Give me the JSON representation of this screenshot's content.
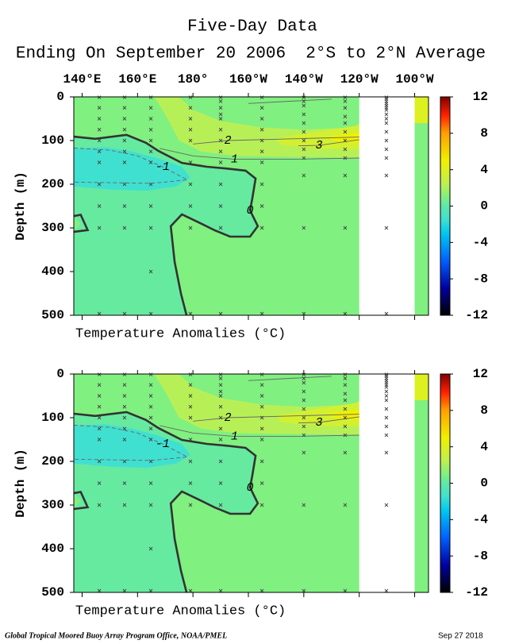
{
  "title": "Five-Day Data",
  "subtitle": "Ending On September 20 2006  2°S to 2°N Average",
  "footer": {
    "credit": "Global Tropical Moored Buoy Array Program Office, NOAA/PMEL",
    "date": "Sep 27 2018"
  },
  "chart_data": [
    {
      "type": "contour",
      "xlabel": "Temperature Anomalies (°C)",
      "ylabel": "Depth (m)",
      "xlim": [
        137,
        265
      ],
      "ylim": [
        0,
        500
      ],
      "y_inverted": true,
      "xticks": [
        {
          "value": 140,
          "label": "140°E"
        },
        {
          "value": 160,
          "label": "160°E"
        },
        {
          "value": 180,
          "label": "180°"
        },
        {
          "value": 200,
          "label": "160°W"
        },
        {
          "value": 220,
          "label": "140°W"
        },
        {
          "value": 240,
          "label": "120°W"
        },
        {
          "value": 260,
          "label": "100°W"
        }
      ],
      "yticks": [
        0,
        100,
        200,
        300,
        400,
        500
      ],
      "zlim": [
        -12,
        12
      ],
      "zticks": [
        12,
        8,
        4,
        0,
        -4,
        -8,
        -12
      ],
      "colorscale": [
        [
          -12,
          "#000000"
        ],
        [
          -9,
          "#0000a0"
        ],
        [
          -6,
          "#0060ff"
        ],
        [
          -3,
          "#00c8f0"
        ],
        [
          -1.5,
          "#40e0d0"
        ],
        [
          0,
          "#60e8a8"
        ],
        [
          1,
          "#80f080"
        ],
        [
          2.5,
          "#c0f050"
        ],
        [
          5,
          "#f0f000"
        ],
        [
          8,
          "#ffa000"
        ],
        [
          10,
          "#ff2000"
        ],
        [
          12,
          "#800000"
        ]
      ],
      "no_data_x": [
        240,
        260
      ],
      "regions": [
        {
          "value": 1,
          "x": [
            137,
            265,
            265,
            137
          ],
          "y": [
            0,
            0,
            500,
            500
          ]
        },
        {
          "value": 0.2,
          "x": [
            137,
            144.7,
            156,
            163,
            167.6,
            176,
            185,
            192,
            199,
            202.6,
            201.4,
            200.6,
            203.4,
            200.6,
            193.4,
            187.7,
            182,
            176,
            172,
            173.4,
            175.7,
            177.7,
            137,
            137,
            139.5,
            137
          ],
          "y": [
            91,
            96,
            87,
            105,
            124,
            151,
            160,
            164,
            169,
            187,
            233,
            260,
            296,
            320,
            320,
            305,
            287,
            269,
            296,
            378,
            451,
            500,
            500,
            309,
            290,
            273
          ]
        },
        {
          "value": -1.5,
          "x": [
            137,
            148,
            158,
            167,
            176,
            179,
            174,
            163,
            150,
            137
          ],
          "y": [
            118,
            115,
            125,
            140,
            160,
            185,
            205,
            215,
            212,
            205
          ]
        },
        {
          "value": 2.3,
          "x": [
            166,
            175,
            180,
            190,
            205,
            220,
            238,
            240,
            240,
            225,
            210,
            195,
            183,
            175,
            170
          ],
          "y": [
            0,
            0,
            30,
            55,
            70,
            75,
            70,
            60,
            140,
            138,
            137,
            135,
            125,
            100,
            40
          ]
        },
        {
          "value": 3.5,
          "x": [
            210,
            225,
            240,
            240,
            225,
            212
          ],
          "y": [
            95,
            80,
            65,
            120,
            118,
            110
          ]
        },
        {
          "value": 5,
          "x": [
            228,
            236,
            240,
            240,
            232
          ],
          "y": [
            92,
            85,
            82,
            105,
            102
          ]
        },
        {
          "value": 4,
          "x": [
            260,
            265,
            265,
            260
          ],
          "y": [
            0,
            0,
            60,
            60
          ]
        }
      ],
      "contours": [
        {
          "level": 0,
          "labeled": true,
          "x": [
            137,
            144.7,
            156,
            163,
            167.6,
            176,
            185,
            192,
            199,
            202.6,
            201.4,
            200.6,
            203.4,
            200.6,
            193.4,
            187.7,
            182,
            176,
            172,
            173.4,
            175.7,
            177.7
          ],
          "y": [
            91,
            96,
            87,
            105,
            124,
            151,
            160,
            164,
            169,
            187,
            233,
            260,
            296,
            320,
            320,
            305,
            287,
            269,
            296,
            378,
            451,
            500
          ]
        },
        {
          "level": 0,
          "labeled": false,
          "x": [
            137,
            139.5,
            142,
            137
          ],
          "y": [
            273,
            270,
            305,
            309
          ]
        },
        {
          "level": 1,
          "labeled": true,
          "x": [
            168,
            180,
            195,
            215,
            240
          ],
          "y": [
            118,
            135,
            143,
            143,
            140
          ]
        },
        {
          "level": 2,
          "labeled": true,
          "x": [
            180,
            192.6,
            240
          ],
          "y": [
            108,
            100,
            92
          ]
        },
        {
          "level": 2,
          "labeled": false,
          "x": [
            200,
            215,
            230
          ],
          "y": [
            15,
            10,
            5
          ]
        },
        {
          "level": 3,
          "labeled": true,
          "x": [
            218,
            225.5,
            240
          ],
          "y": [
            112,
            111,
            98
          ]
        },
        {
          "level": -1,
          "labeled": true,
          "x": [
            137,
            150,
            160,
            169,
            178,
            165,
            137
          ],
          "y": [
            117,
            122,
            135,
            160,
            190,
            198,
            195
          ]
        }
      ],
      "sensors": [
        {
          "lon": 146.2,
          "depths": [
            1,
            25,
            50,
            75,
            100,
            125,
            150,
            200,
            250,
            300,
            500
          ]
        },
        {
          "lon": 155.3,
          "depths": [
            1,
            25,
            50,
            75,
            100,
            125,
            150,
            200,
            250,
            300,
            500
          ]
        },
        {
          "lon": 164.8,
          "depths": [
            1,
            25,
            50,
            75,
            100,
            125,
            150,
            200,
            250,
            300,
            400,
            500
          ]
        },
        {
          "lon": 179.1,
          "depths": [
            1,
            25,
            50,
            75,
            100,
            150,
            200,
            250,
            300,
            500
          ]
        },
        {
          "lon": 190,
          "depths": [
            1,
            10,
            25,
            40,
            50,
            75,
            100,
            125,
            150,
            200,
            250,
            300,
            500
          ]
        },
        {
          "lon": 204.9,
          "depths": [
            1,
            25,
            50,
            75,
            100,
            125,
            150,
            200,
            250,
            300,
            500
          ]
        },
        {
          "lon": 220,
          "depths": [
            1,
            10,
            20,
            40,
            60,
            80,
            100,
            120,
            140,
            180,
            300,
            500
          ]
        },
        {
          "lon": 234.9,
          "depths": [
            1,
            10,
            25,
            45,
            60,
            80,
            100,
            120,
            140,
            180,
            300,
            500
          ]
        },
        {
          "lon": 249.8,
          "depths": [
            1,
            5,
            10,
            15,
            20,
            25,
            30,
            40,
            50,
            60,
            80,
            100,
            120,
            140,
            180,
            300,
            500
          ]
        }
      ]
    },
    {
      "type": "contour",
      "xlabel": "Temperature Anomalies (°C)",
      "ylabel": "Depth (m)",
      "xlim": [
        137,
        265
      ],
      "ylim": [
        0,
        500
      ],
      "y_inverted": true,
      "xticks": [
        140,
        160,
        180,
        200,
        220,
        240,
        260
      ],
      "yticks": [
        0,
        100,
        200,
        300,
        400,
        500
      ],
      "zlim": [
        -12,
        12
      ],
      "zticks": [
        12,
        8,
        4,
        0,
        -4,
        -8,
        -12
      ],
      "colorscale": [
        [
          -12,
          "#000000"
        ],
        [
          -9,
          "#0000a0"
        ],
        [
          -6,
          "#0060ff"
        ],
        [
          -3,
          "#00c8f0"
        ],
        [
          -1.5,
          "#40e0d0"
        ],
        [
          0,
          "#60e8a8"
        ],
        [
          1,
          "#80f080"
        ],
        [
          2.5,
          "#c0f050"
        ],
        [
          5,
          "#f0f000"
        ],
        [
          8,
          "#ffa000"
        ],
        [
          10,
          "#ff2000"
        ],
        [
          12,
          "#800000"
        ]
      ],
      "no_data_x": [
        240,
        260
      ],
      "regions": [
        {
          "value": 1,
          "x": [
            137,
            265,
            265,
            137
          ],
          "y": [
            0,
            0,
            500,
            500
          ]
        },
        {
          "value": 0.2,
          "x": [
            137,
            144.7,
            156,
            163,
            167.6,
            176,
            185,
            192,
            199,
            202.6,
            201.4,
            200.6,
            203.4,
            200.6,
            193.4,
            187.7,
            182,
            176,
            172,
            173.4,
            175.7,
            177.7,
            137,
            137,
            139.5,
            137
          ],
          "y": [
            91,
            96,
            87,
            105,
            124,
            151,
            160,
            164,
            169,
            187,
            233,
            260,
            296,
            320,
            320,
            305,
            287,
            269,
            296,
            378,
            451,
            500,
            500,
            309,
            290,
            273
          ]
        },
        {
          "value": -1.5,
          "x": [
            137,
            148,
            158,
            167,
            176,
            179,
            174,
            163,
            150,
            137
          ],
          "y": [
            118,
            115,
            125,
            140,
            160,
            185,
            205,
            215,
            212,
            205
          ]
        },
        {
          "value": 2.3,
          "x": [
            166,
            175,
            180,
            190,
            205,
            220,
            238,
            240,
            240,
            225,
            210,
            195,
            183,
            175,
            170
          ],
          "y": [
            0,
            0,
            30,
            55,
            70,
            75,
            70,
            60,
            140,
            138,
            137,
            135,
            125,
            100,
            40
          ]
        },
        {
          "value": 3.5,
          "x": [
            210,
            225,
            240,
            240,
            225,
            212
          ],
          "y": [
            95,
            80,
            65,
            120,
            118,
            110
          ]
        },
        {
          "value": 5,
          "x": [
            228,
            236,
            240,
            240,
            232
          ],
          "y": [
            92,
            85,
            82,
            105,
            102
          ]
        },
        {
          "value": 4,
          "x": [
            260,
            265,
            265,
            260
          ],
          "y": [
            0,
            0,
            60,
            60
          ]
        }
      ],
      "contours": [
        {
          "level": 0,
          "labeled": true,
          "x": [
            137,
            144.7,
            156,
            163,
            167.6,
            176,
            185,
            192,
            199,
            202.6,
            201.4,
            200.6,
            203.4,
            200.6,
            193.4,
            187.7,
            182,
            176,
            172,
            173.4,
            175.7,
            177.7
          ],
          "y": [
            91,
            96,
            87,
            105,
            124,
            151,
            160,
            164,
            169,
            187,
            233,
            260,
            296,
            320,
            320,
            305,
            287,
            269,
            296,
            378,
            451,
            500
          ]
        },
        {
          "level": 0,
          "labeled": false,
          "x": [
            137,
            139.5,
            142,
            137
          ],
          "y": [
            273,
            270,
            305,
            309
          ]
        },
        {
          "level": 1,
          "labeled": true,
          "x": [
            168,
            180,
            195,
            215,
            240
          ],
          "y": [
            118,
            135,
            143,
            143,
            140
          ]
        },
        {
          "level": 2,
          "labeled": true,
          "x": [
            180,
            192.6,
            240
          ],
          "y": [
            108,
            100,
            92
          ]
        },
        {
          "level": 2,
          "labeled": false,
          "x": [
            200,
            215,
            230
          ],
          "y": [
            15,
            10,
            5
          ]
        },
        {
          "level": 3,
          "labeled": true,
          "x": [
            218,
            225.5,
            240
          ],
          "y": [
            112,
            111,
            98
          ]
        },
        {
          "level": -1,
          "labeled": true,
          "x": [
            137,
            150,
            160,
            169,
            178,
            165,
            137
          ],
          "y": [
            117,
            122,
            135,
            160,
            190,
            198,
            195
          ]
        }
      ],
      "sensors": [
        {
          "lon": 146.2,
          "depths": [
            1,
            25,
            50,
            75,
            100,
            125,
            150,
            200,
            250,
            300,
            500
          ]
        },
        {
          "lon": 155.3,
          "depths": [
            1,
            25,
            50,
            75,
            100,
            125,
            150,
            200,
            250,
            300,
            500
          ]
        },
        {
          "lon": 164.8,
          "depths": [
            1,
            25,
            50,
            75,
            100,
            125,
            150,
            200,
            250,
            300,
            400,
            500
          ]
        },
        {
          "lon": 179.1,
          "depths": [
            1,
            25,
            50,
            75,
            100,
            150,
            200,
            250,
            300,
            500
          ]
        },
        {
          "lon": 190,
          "depths": [
            1,
            10,
            25,
            40,
            50,
            75,
            100,
            125,
            150,
            200,
            250,
            300,
            500
          ]
        },
        {
          "lon": 204.9,
          "depths": [
            1,
            25,
            50,
            75,
            100,
            125,
            150,
            200,
            250,
            300,
            500
          ]
        },
        {
          "lon": 220,
          "depths": [
            1,
            10,
            20,
            40,
            60,
            80,
            100,
            120,
            140,
            180,
            300,
            500
          ]
        },
        {
          "lon": 234.9,
          "depths": [
            1,
            10,
            25,
            45,
            60,
            80,
            100,
            120,
            140,
            180,
            300,
            500
          ]
        },
        {
          "lon": 249.8,
          "depths": [
            1,
            5,
            10,
            15,
            20,
            25,
            30,
            40,
            50,
            60,
            80,
            100,
            120,
            140,
            180,
            300,
            500
          ]
        }
      ]
    }
  ]
}
